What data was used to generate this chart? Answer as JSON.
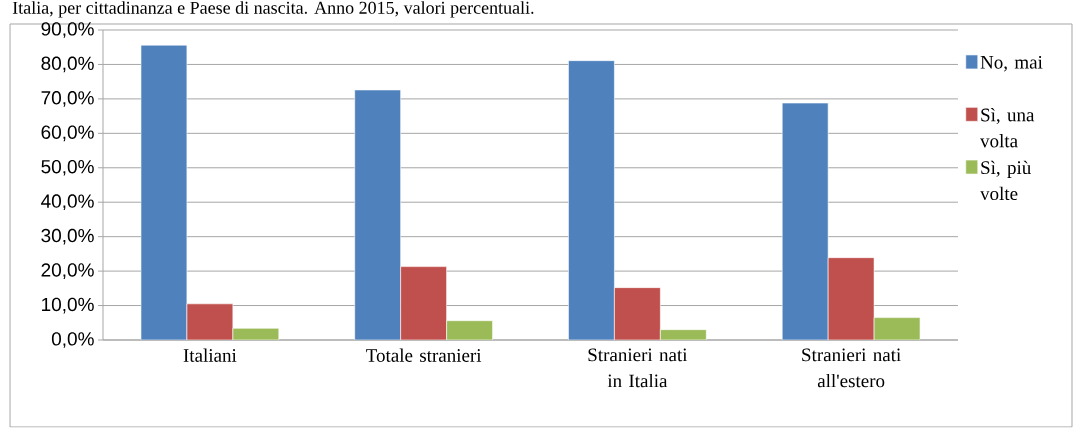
{
  "chart_data": {
    "type": "bar",
    "title": "Italia, per cittadinanza e Paese di nascita. Anno 2015, valori percentuali.",
    "categories": [
      "Italiani",
      "Totale stranieri",
      "Stranieri nati in Italia",
      "Stranieri nati all'estero"
    ],
    "series": [
      {
        "name": "No, mai",
        "color": "#4f81bd",
        "values": [
          85.6,
          72.6,
          81.1,
          68.8
        ]
      },
      {
        "name": "Sì, una volta",
        "color": "#c0504d",
        "values": [
          10.5,
          21.3,
          15.2,
          23.9
        ]
      },
      {
        "name": "Sì, più volte",
        "color": "#9bbb59",
        "values": [
          3.4,
          5.6,
          3.0,
          6.5
        ]
      }
    ],
    "ylim": [
      0,
      90
    ],
    "yticks": [
      {
        "value": 0,
        "label": "0,0%"
      },
      {
        "value": 10,
        "label": "10,0%"
      },
      {
        "value": 20,
        "label": "20,0%"
      },
      {
        "value": 30,
        "label": "30,0%"
      },
      {
        "value": 40,
        "label": "40,0%"
      },
      {
        "value": 50,
        "label": "50,0%"
      },
      {
        "value": 60,
        "label": "60,0%"
      },
      {
        "value": 70,
        "label": "70,0%"
      },
      {
        "value": 80,
        "label": "80,0%"
      },
      {
        "value": 90,
        "label": "90,0%"
      }
    ],
    "grid": "y",
    "legend": "right"
  }
}
